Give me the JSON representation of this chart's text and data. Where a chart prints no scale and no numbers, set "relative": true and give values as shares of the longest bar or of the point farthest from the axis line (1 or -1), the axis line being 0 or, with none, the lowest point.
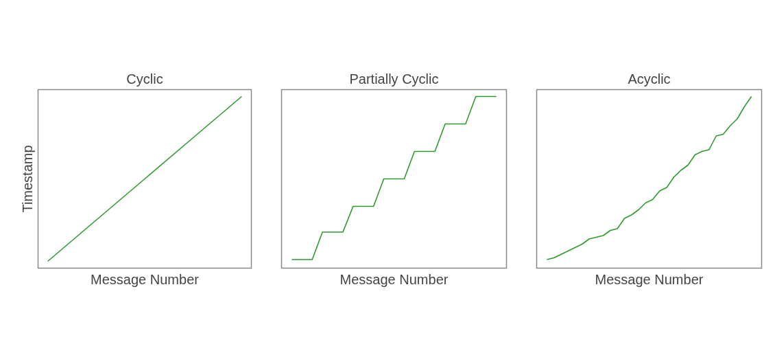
{
  "chart_data": [
    {
      "type": "line",
      "relative": true,
      "title": "Cyclic",
      "xlabel": "Message Number",
      "ylabel": "Timestamp",
      "categories": [
        null,
        null,
        null,
        null,
        null
      ],
      "series": [
        {
          "color": "#2e9b2e",
          "values": [
            0.04,
            0.28,
            0.52,
            0.76,
            1
          ]
        }
      ]
    },
    {
      "type": "line",
      "relative": true,
      "title": "Partially Cyclic",
      "xlabel": "Message Number",
      "categories": [
        null,
        null,
        null,
        null,
        null,
        null,
        null,
        null,
        null,
        null,
        null,
        null,
        null,
        null,
        null,
        null,
        null,
        null,
        null,
        null,
        null
      ],
      "series": [
        {
          "color": "#2e9b2e",
          "values": [
            0.05,
            0.05,
            0.05,
            0.21,
            0.21,
            0.21,
            0.36,
            0.36,
            0.36,
            0.52,
            0.52,
            0.52,
            0.68,
            0.68,
            0.68,
            0.84,
            0.84,
            0.84,
            1,
            1,
            1
          ]
        }
      ]
    },
    {
      "type": "line",
      "relative": true,
      "title": "Acyclic",
      "xlabel": "Message Number",
      "categories": [
        null,
        null,
        null,
        null,
        null,
        null,
        null,
        null,
        null,
        null,
        null,
        null,
        null,
        null,
        null,
        null,
        null,
        null,
        null,
        null,
        null,
        null,
        null,
        null,
        null,
        null,
        null,
        null,
        null,
        null
      ],
      "series": [
        {
          "color": "#2e9b2e",
          "values": [
            0.05,
            0.06,
            0.08,
            0.1,
            0.12,
            0.14,
            0.17,
            0.18,
            0.19,
            0.22,
            0.23,
            0.29,
            0.31,
            0.34,
            0.38,
            0.4,
            0.45,
            0.47,
            0.53,
            0.57,
            0.6,
            0.66,
            0.68,
            0.69,
            0.77,
            0.78,
            0.83,
            0.87,
            0.94,
            1
          ]
        }
      ]
    }
  ]
}
